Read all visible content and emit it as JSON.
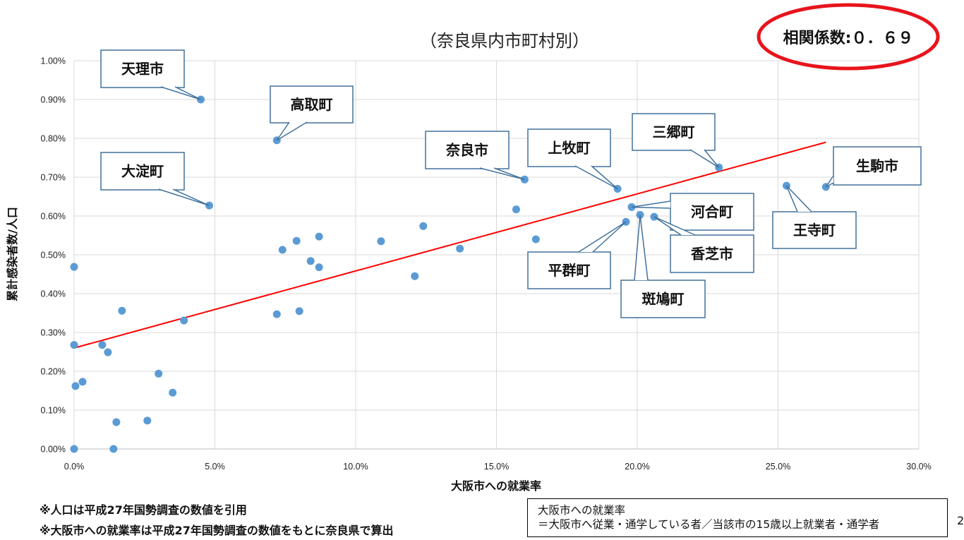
{
  "chart_data": {
    "type": "scatter",
    "title": "（奈良県内市町村別）",
    "xlabel": "大阪市への就業率",
    "ylabel": "累計感染者数/人口",
    "xlim": [
      0,
      30
    ],
    "ylim": [
      0,
      1.0
    ],
    "x_ticks": [
      "0.0%",
      "5.0%",
      "10.0%",
      "15.0%",
      "20.0%",
      "25.0%",
      "30.0%"
    ],
    "y_ticks": [
      "0.00%",
      "0.10%",
      "0.20%",
      "0.30%",
      "0.40%",
      "0.50%",
      "0.60%",
      "0.70%",
      "0.80%",
      "0.90%",
      "1.00%"
    ],
    "grid": true,
    "point_color": "#5b9bd5",
    "trendline": {
      "color": "#ff0000",
      "x": [
        0.0,
        26.7
      ],
      "y": [
        0.26,
        0.79
      ]
    },
    "correlation": "相関係数:０．６９",
    "points": [
      [
        4.5,
        0.9
      ],
      [
        7.2,
        0.795
      ],
      [
        4.8,
        0.627
      ],
      [
        16.0,
        0.694
      ],
      [
        19.3,
        0.67
      ],
      [
        22.9,
        0.725
      ],
      [
        26.7,
        0.675
      ],
      [
        25.3,
        0.678
      ],
      [
        19.8,
        0.623
      ],
      [
        20.6,
        0.598
      ],
      [
        20.1,
        0.603
      ],
      [
        19.6,
        0.585
      ],
      [
        15.7,
        0.617
      ],
      [
        16.4,
        0.54
      ],
      [
        12.4,
        0.574
      ],
      [
        13.7,
        0.516
      ],
      [
        12.1,
        0.445
      ],
      [
        10.9,
        0.535
      ],
      [
        8.7,
        0.547
      ],
      [
        8.7,
        0.468
      ],
      [
        8.4,
        0.484
      ],
      [
        7.9,
        0.536
      ],
      [
        7.4,
        0.513
      ],
      [
        7.2,
        0.347
      ],
      [
        8.0,
        0.355
      ],
      [
        3.9,
        0.331
      ],
      [
        1.7,
        0.356
      ],
      [
        0.0,
        0.469
      ],
      [
        0.0,
        0.268
      ],
      [
        1.0,
        0.268
      ],
      [
        1.2,
        0.249
      ],
      [
        0.3,
        0.173
      ],
      [
        0.05,
        0.162
      ],
      [
        3.0,
        0.194
      ],
      [
        3.5,
        0.145
      ],
      [
        2.6,
        0.073
      ],
      [
        1.5,
        0.069
      ],
      [
        0.0,
        0.0
      ],
      [
        1.4,
        0.0
      ]
    ],
    "callouts": [
      {
        "label": "天理市",
        "x": 4.5,
        "y": 0.9
      },
      {
        "label": "高取町",
        "x": 7.2,
        "y": 0.795
      },
      {
        "label": "大淀町",
        "x": 4.8,
        "y": 0.627
      },
      {
        "label": "奈良市",
        "x": 16.0,
        "y": 0.694
      },
      {
        "label": "上牧町",
        "x": 19.3,
        "y": 0.67
      },
      {
        "label": "三郷町",
        "x": 22.9,
        "y": 0.725
      },
      {
        "label": "生駒市",
        "x": 26.7,
        "y": 0.675
      },
      {
        "label": "王寺町",
        "x": 25.3,
        "y": 0.678
      },
      {
        "label": "河合町",
        "x": 19.8,
        "y": 0.623
      },
      {
        "label": "香芝市",
        "x": 20.6,
        "y": 0.598
      },
      {
        "label": "斑鳩町",
        "x": 20.1,
        "y": 0.603
      },
      {
        "label": "平群町",
        "x": 19.6,
        "y": 0.585
      }
    ]
  },
  "notes": {
    "line1": "※人口は平成27年国勢調査の数値を引用",
    "line2": "※大阪市への就業率は平成27年国勢調査の数値をもとに奈良県で算出"
  },
  "definition": {
    "line1": "大阪市への就業率",
    "line2": "＝大阪市へ従業・通学している者／当該市の15歳以上就業者・通学者"
  },
  "page_number": "2"
}
